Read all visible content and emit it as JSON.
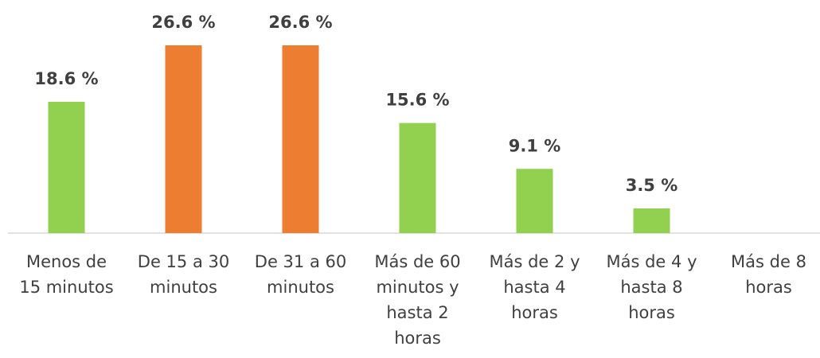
{
  "chart_data": {
    "type": "bar",
    "categories": [
      [
        "Menos de",
        "15 minutos"
      ],
      [
        "De 15 a 30",
        "minutos"
      ],
      [
        "De 31 a 60",
        "minutos"
      ],
      [
        "Más de 60",
        "minutos y",
        "hasta 2",
        "horas"
      ],
      [
        "Más de 2 y",
        "hasta 4",
        "horas"
      ],
      [
        "Más de 4 y",
        "hasta 8",
        "horas"
      ],
      [
        "Más de 8",
        "horas"
      ]
    ],
    "values": [
      18.6,
      26.6,
      26.6,
      15.6,
      9.1,
      3.5,
      null
    ],
    "value_labels": [
      "18.6 %",
      "26.6 %",
      "26.6 %",
      "15.6 %",
      "9.1 %",
      "3.5 %",
      null
    ],
    "colors": [
      "#92d050",
      "#ed7d31",
      "#ed7d31",
      "#92d050",
      "#92d050",
      "#92d050",
      "#92d050"
    ]
  }
}
